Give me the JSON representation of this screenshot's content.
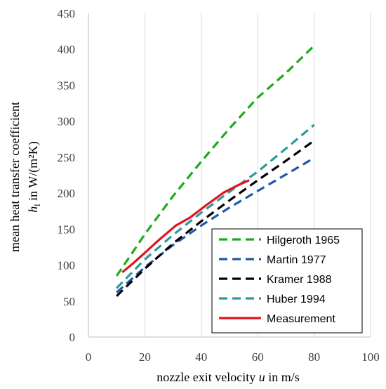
{
  "chart_data": {
    "type": "line",
    "xlabel_prefix": "nozzle exit velocity ",
    "xlabel_var": "u",
    "xlabel_suffix": " in m/s",
    "ylabel_line1": "mean heat transfer coefficient",
    "ylabel_var": "h",
    "ylabel_sub": "l",
    "ylabel_suffix": " in W/(m²K)",
    "xlim": [
      0,
      100
    ],
    "ylim": [
      0,
      450
    ],
    "xticks": [
      0,
      20,
      40,
      60,
      80,
      100
    ],
    "yticks": [
      0,
      50,
      100,
      150,
      200,
      250,
      300,
      350,
      400,
      450
    ],
    "grid": "vertical",
    "legend_position": "bottom-right",
    "series": [
      {
        "name": "Hilgeroth 1965",
        "color": "#1aab1a",
        "dash": true,
        "x": [
          10,
          20,
          30,
          40,
          50,
          60,
          70,
          80
        ],
        "y": [
          85,
          143,
          196,
          244,
          290,
          333,
          367,
          405
        ]
      },
      {
        "name": "Martin 1977",
        "color": "#1f5aa6",
        "dash": true,
        "x": [
          10,
          20,
          30,
          40,
          50,
          60,
          70,
          80
        ],
        "y": [
          62,
          97,
          128,
          155,
          180,
          203,
          226,
          249
        ]
      },
      {
        "name": "Kramer 1988",
        "color": "#000000",
        "dash": true,
        "x": [
          10,
          20,
          30,
          40,
          50,
          60,
          70,
          80
        ],
        "y": [
          57,
          95,
          130,
          161,
          190,
          218,
          245,
          273
        ]
      },
      {
        "name": "Huber 1994",
        "color": "#2a9a9c",
        "dash": true,
        "x": [
          10,
          20,
          30,
          40,
          50,
          60,
          70,
          80
        ],
        "y": [
          68,
          108,
          142,
          173,
          202,
          230,
          262,
          295
        ]
      },
      {
        "name": "Measurement",
        "color": "#e0141e",
        "dash": false,
        "x": [
          12,
          16,
          20,
          25,
          31,
          36,
          42,
          48,
          53,
          57
        ],
        "y": [
          90,
          103,
          117,
          135,
          155,
          166,
          184,
          201,
          211,
          218
        ]
      }
    ]
  }
}
